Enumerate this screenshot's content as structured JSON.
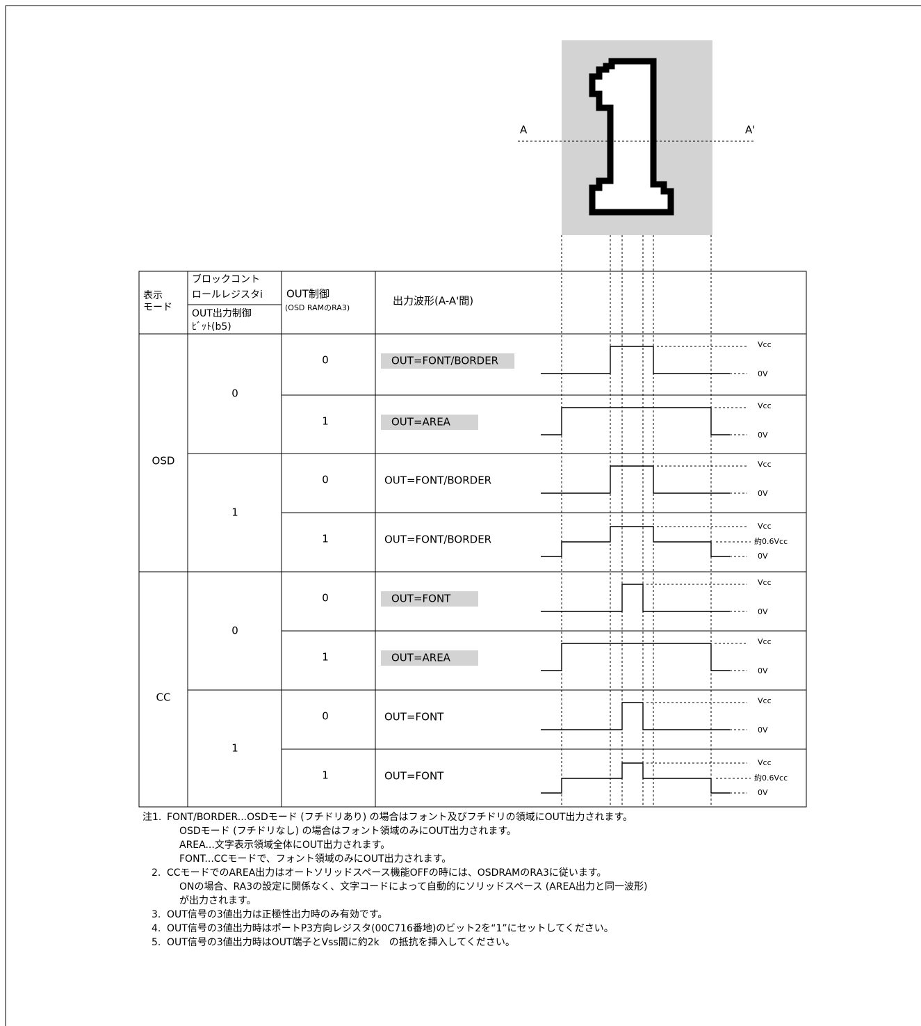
{
  "diagram": {
    "label_a": "A",
    "label_a_prime": "A'"
  },
  "table": {
    "headers": {
      "mode": [
        "表示",
        "モード"
      ],
      "register": [
        "ブロックコント",
        "ロールレジスタi"
      ],
      "bit": [
        "OUT出力制御",
        "ﾋﾞｯﾄ(b5)"
      ],
      "ra3": [
        "OUT制御",
        "(OSD RAMのRA3)"
      ],
      "waveform": "出力波形(A-A'間)"
    },
    "modes": [
      {
        "name": "OSD",
        "groups": [
          {
            "bit": "0",
            "rows": [
              {
                "ra3": "0",
                "output": "OUT=FONT/BORDER",
                "highlight": true,
                "levels": [
                  "Vcc",
                  "0V"
                ]
              },
              {
                "ra3": "1",
                "output": "OUT=AREA",
                "highlight": true,
                "levels": [
                  "Vcc",
                  "0V"
                ]
              }
            ]
          },
          {
            "bit": "1",
            "rows": [
              {
                "ra3": "0",
                "output": "OUT=FONT/BORDER",
                "highlight": false,
                "levels": [
                  "Vcc",
                  "0V"
                ]
              },
              {
                "ra3": "1",
                "output": "OUT=FONT/BORDER",
                "highlight": false,
                "levels": [
                  "Vcc",
                  "約0.6Vcc",
                  "0V"
                ]
              }
            ]
          }
        ]
      },
      {
        "name": "CC",
        "groups": [
          {
            "bit": "0",
            "rows": [
              {
                "ra3": "0",
                "output": "OUT=FONT",
                "highlight": true,
                "levels": [
                  "Vcc",
                  "0V"
                ]
              },
              {
                "ra3": "1",
                "output": "OUT=AREA",
                "highlight": true,
                "levels": [
                  "Vcc",
                  "0V"
                ]
              }
            ]
          },
          {
            "bit": "1",
            "rows": [
              {
                "ra3": "0",
                "output": "OUT=FONT",
                "highlight": false,
                "levels": [
                  "Vcc",
                  "0V"
                ]
              },
              {
                "ra3": "1",
                "output": "OUT=FONT",
                "highlight": false,
                "levels": [
                  "Vcc",
                  "約0.6Vcc",
                  "0V"
                ]
              }
            ]
          }
        ]
      }
    ]
  },
  "notes": [
    {
      "number": "注1.",
      "lines": [
        "FONT/BORDER...OSDモード (フチドリあり) の場合はフォント及びフチドリの領域にOUT出力されます。",
        "OSDモード (フチドリなし) の場合はフォント領域のみにOUT出力されます。",
        "AREA...文字表示領域全体にOUT出力されます。",
        "FONT...CCモードで、フォント領域のみにOUT出力されます。"
      ]
    },
    {
      "number": "2.",
      "lines": [
        "CCモードでのAREA出力はオートソリッドスペース機能OFFの時には、OSDRAMのRA3に従います。",
        "ONの場合、RA3の設定に関係なく、文字コードによって自動的にソリッドスペース (AREA出力と同一波形)",
        "が出力されます。"
      ]
    },
    {
      "number": "3.",
      "lines": [
        "OUT信号の3値出力は正極性出力時のみ有効です。"
      ]
    },
    {
      "number": "4.",
      "lines": [
        "OUT信号の3値出力時はポートP3方向レジスタ(00C716番地)のビット2を“1”にセットしてください。"
      ]
    },
    {
      "number": "5.",
      "lines": [
        "OUT信号の3値出力時はOUT端子とVss間に約2k　の抵抗を挿入してください。"
      ]
    }
  ]
}
